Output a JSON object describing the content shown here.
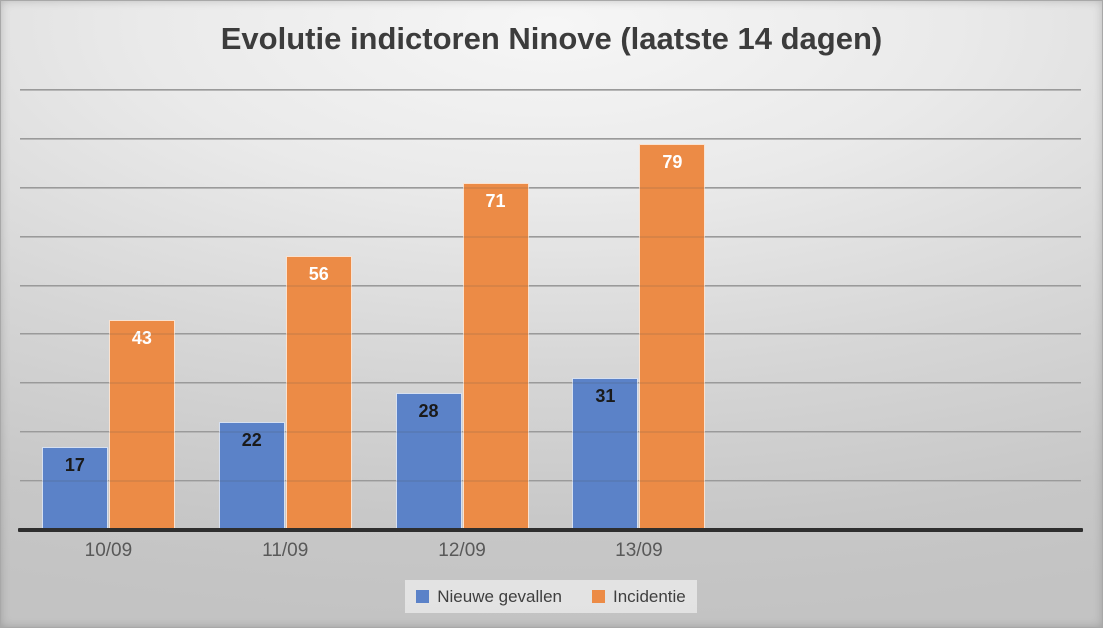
{
  "chart_data": {
    "type": "bar",
    "title": "Evolutie indictoren Ninove (laatste 14 dagen)",
    "categories": [
      "10/09",
      "11/09",
      "12/09",
      "13/09"
    ],
    "series": [
      {
        "name": "Nieuwe gevallen",
        "color": "#5B82C8",
        "label_color": "#1a1a1a",
        "values": [
          17,
          22,
          28,
          31
        ]
      },
      {
        "name": "Incidentie",
        "color": "#EC8B46",
        "label_color": "#ffffff",
        "values": [
          43,
          56,
          71,
          79
        ]
      }
    ],
    "xlabel": "",
    "ylabel": "",
    "ylim": [
      0,
      90
    ],
    "grid_step": 10,
    "grid": "on",
    "y_tick_labels_visible": false,
    "legend_position": "bottom",
    "total_category_slots": 6,
    "data_labels": "inside-end"
  },
  "palette": {
    "title_color": "#3c3c3c",
    "axis_label_color": "#595959",
    "gridline_color": "#9a9a9a",
    "baseline_color": "#2e2e2e",
    "background_top": "#f6f6f6",
    "background_edge": "#c3c3c3",
    "legend_background": "#e9e9e9"
  }
}
